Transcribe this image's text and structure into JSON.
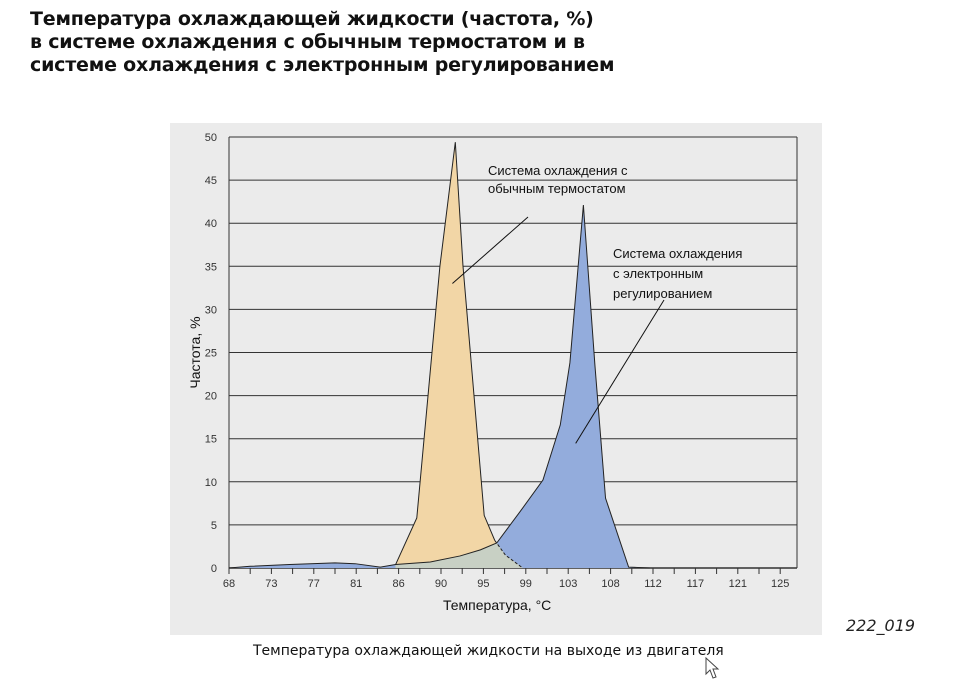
{
  "title": "Температура охлаждающей жидкости (частота, %)\nв системе охлаждения с обычным термостатом и в\nсистеме охлаждения с электронным регулированием",
  "figure_code": "222_019",
  "caption": "Температура охлаждающей жидкости на выходе из двигателя",
  "colors": {
    "conventional": "#f2d6a6",
    "electronic": "#93acdc",
    "overlap": "#c8d0c4",
    "grid": "#333333"
  },
  "chart_data": {
    "type": "area",
    "xlabel": "Температура, °C",
    "ylabel": "Частота, %",
    "ylim": [
      0,
      50
    ],
    "xlim": [
      68,
      127
    ],
    "yticks": [
      0,
      5,
      10,
      15,
      20,
      25,
      30,
      35,
      40,
      45,
      50
    ],
    "xtick_labels": [
      "68",
      "73",
      "77",
      "81",
      "86",
      "90",
      "95",
      "99",
      "103",
      "108",
      "112",
      "117",
      "121",
      "125"
    ],
    "grid": true,
    "series": [
      {
        "name": "Система охлаждения с электронным регулированием",
        "x": [
          68,
          70.2,
          74.3,
          79,
          81.1,
          83.7,
          85.3,
          88.9,
          92,
          94.1,
          95.8,
          98.2,
          100.6,
          102.4,
          103.4,
          104.8,
          106,
          107.1,
          109.5,
          111.7
        ],
        "y": [
          0,
          0.2,
          0.4,
          0.6,
          0.5,
          0.1,
          0.4,
          0.7,
          1.4,
          2.1,
          2.9,
          6.5,
          10.2,
          16.6,
          23.8,
          42.1,
          23.5,
          8.1,
          0.1,
          0
        ]
      },
      {
        "name": "Система охлаждения с обычным термостатом",
        "x": [
          85.3,
          87.5,
          89.9,
          91.5,
          92.3,
          94.5,
          95.6,
          96.7,
          98.5
        ],
        "y": [
          0.4,
          5.8,
          35,
          49.4,
          35,
          6.1,
          3.2,
          1.5,
          0
        ]
      }
    ],
    "annotations": [
      {
        "text": [
          "Система охлаждения с",
          "обычным термостатом"
        ],
        "series": 1,
        "pointer_to": [
          91.2,
          33
        ]
      },
      {
        "text": [
          "Система охлаждения",
          "с электронным",
          "регулированием"
        ],
        "series": 0,
        "pointer_to": [
          104,
          22
        ]
      }
    ]
  }
}
